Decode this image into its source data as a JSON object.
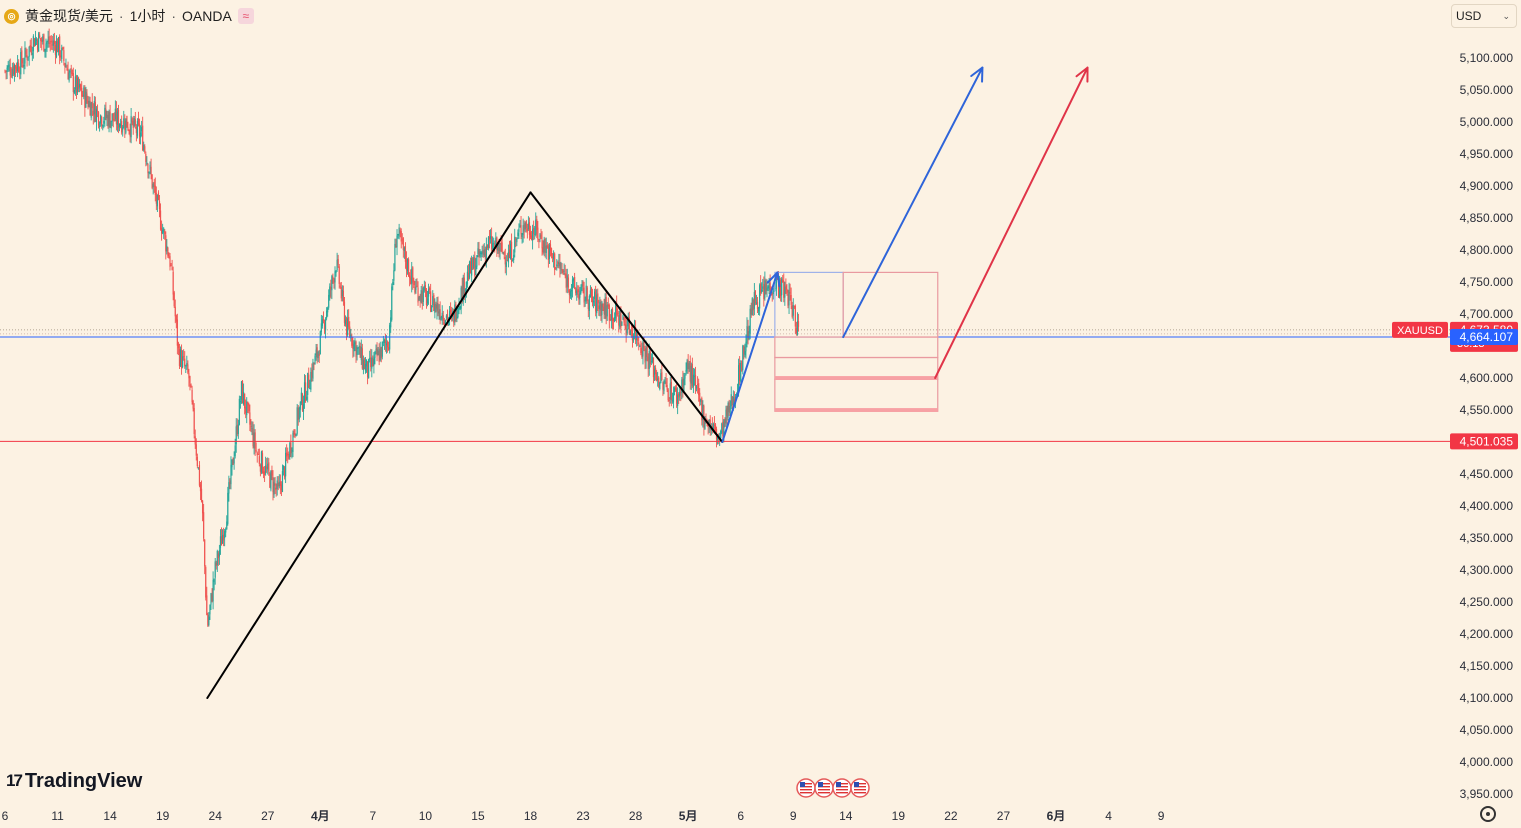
{
  "header": {
    "symbol_name": "黄金现货/美元",
    "timeframe": "1小时",
    "broker": "OANDA",
    "separator": "·",
    "logo_icon": "gold-coin-icon",
    "indicator_icon": "wave-icon"
  },
  "currency_select": {
    "value": "USD",
    "icon": "chevron-down-icon"
  },
  "brand": {
    "name": "TradingView",
    "logo_mark": "17",
    "logo_icon": "tradingview-logo-icon"
  },
  "settings_icon": "gear-icon",
  "colors": {
    "background": "#fcf2e3",
    "bull": "#26a69a",
    "bear": "#ef5350",
    "blue_line": "#2962ff",
    "red_line": "#f23645",
    "zone_fill": "#f7a1a4",
    "zone_stroke": "#e99aa0",
    "arrow_blue": "#2e64d9",
    "arrow_red": "#e03448"
  },
  "chart_data": {
    "type": "candlestick",
    "symbol": "XAUUSD",
    "timeframe": "1H",
    "y_unit": "USD",
    "ylim": [
      3925,
      5125
    ],
    "y_ticks": [
      "5,100.000",
      "5,050.000",
      "5,000.000",
      "4,950.000",
      "4,900.000",
      "4,850.000",
      "4,800.000",
      "4,750.000",
      "4,700.000",
      "4,650.000",
      "4,600.000",
      "4,550.000",
      "4,500.000",
      "4,450.000",
      "4,400.000",
      "4,350.000",
      "4,300.000",
      "4,250.000",
      "4,200.000",
      "4,150.000",
      "4,100.000",
      "4,050.000",
      "4,000.000",
      "3,950.000"
    ],
    "y_tick_values": [
      5100,
      5050,
      5000,
      4950,
      4900,
      4850,
      4800,
      4750,
      4700,
      4650,
      4600,
      4550,
      4500,
      4450,
      4400,
      4350,
      4300,
      4250,
      4200,
      4150,
      4100,
      4050,
      4000,
      3950
    ],
    "x_ticks": [
      "6",
      "11",
      "14",
      "19",
      "24",
      "27",
      "4月",
      "7",
      "10",
      "15",
      "18",
      "23",
      "28",
      "5月",
      "6",
      "9",
      "14",
      "19",
      "22",
      "27",
      "6月",
      "4",
      "9"
    ],
    "x_tick_index": [
      0,
      1,
      2,
      3,
      4,
      5,
      6,
      7,
      8,
      9,
      10,
      11,
      12,
      13,
      14,
      15,
      16,
      17,
      18,
      19,
      20,
      21,
      22
    ],
    "price_path": [
      [
        0,
        5080
      ],
      [
        0.35,
        5095
      ],
      [
        0.55,
        5130
      ],
      [
        1.0,
        5120
      ],
      [
        1.3,
        5060
      ],
      [
        1.8,
        5010
      ],
      [
        2.3,
        5000
      ],
      [
        2.6,
        4980
      ],
      [
        2.95,
        4850
      ],
      [
        3.15,
        4780
      ],
      [
        3.3,
        4640
      ],
      [
        3.5,
        4600
      ],
      [
        3.75,
        4400
      ],
      [
        3.85,
        4210
      ],
      [
        4.0,
        4300
      ],
      [
        4.2,
        4380
      ],
      [
        4.5,
        4580
      ],
      [
        4.8,
        4480
      ],
      [
        5.2,
        4420
      ],
      [
        5.6,
        4550
      ],
      [
        5.95,
        4640
      ],
      [
        6.3,
        4780
      ],
      [
        6.5,
        4680
      ],
      [
        6.9,
        4610
      ],
      [
        7.3,
        4660
      ],
      [
        7.45,
        4830
      ],
      [
        7.8,
        4740
      ],
      [
        8.1,
        4720
      ],
      [
        8.5,
        4690
      ],
      [
        8.8,
        4760
      ],
      [
        9.2,
        4810
      ],
      [
        9.6,
        4790
      ],
      [
        9.85,
        4840
      ],
      [
        10.1,
        4830
      ],
      [
        10.4,
        4790
      ],
      [
        10.8,
        4740
      ],
      [
        11.2,
        4720
      ],
      [
        11.6,
        4700
      ],
      [
        12.0,
        4670
      ],
      [
        12.5,
        4590
      ],
      [
        12.8,
        4570
      ],
      [
        13.0,
        4620
      ],
      [
        13.3,
        4540
      ],
      [
        13.6,
        4505
      ],
      [
        13.9,
        4580
      ],
      [
        14.25,
        4720
      ],
      [
        14.65,
        4750
      ],
      [
        14.9,
        4730
      ],
      [
        15.1,
        4676
      ]
    ],
    "last_price": "4,673.580",
    "countdown": "36:13",
    "symbol_label": "XAUUSD",
    "horizontal_lines": [
      {
        "price": 4664.107,
        "label": "4,664.107",
        "color": "#2962ff"
      },
      {
        "price": 4501.035,
        "label": "4,501.035",
        "color": "#f23645"
      }
    ],
    "trend_lines": [
      {
        "from": [
          3.85,
          4100
        ],
        "to": [
          10.0,
          4890
        ],
        "color": "#000000",
        "arrow": false
      },
      {
        "from": [
          10.0,
          4890
        ],
        "to": [
          13.65,
          4500
        ],
        "color": "#000000",
        "arrow": false
      },
      {
        "from": [
          13.65,
          4500
        ],
        "to": [
          14.7,
          4765
        ],
        "color": "#2e64d9",
        "arrow": true
      },
      {
        "from": [
          15.95,
          4664
        ],
        "to": [
          18.6,
          5085
        ],
        "color": "#2e64d9",
        "arrow": true
      },
      {
        "from": [
          17.7,
          4600
        ],
        "to": [
          20.6,
          5085
        ],
        "color": "#e03448",
        "arrow": true
      }
    ],
    "boxes": [
      {
        "x": [
          14.65,
          15.95
        ],
        "y": [
          4664,
          4765
        ],
        "stroke": "#9fb2e9",
        "fill": "none"
      },
      {
        "x": [
          15.95,
          17.75
        ],
        "y": [
          4664,
          4765
        ],
        "stroke": "#e99aa0",
        "fill": "none"
      },
      {
        "x": [
          14.65,
          17.75
        ],
        "y": [
          4632,
          4664
        ],
        "stroke": "#e99aa0",
        "fill": "none"
      },
      {
        "x": [
          14.65,
          17.75
        ],
        "y": [
          4598,
          4632
        ],
        "stroke": "#e99aa0",
        "fill": "none"
      },
      {
        "x": [
          14.65,
          17.75
        ],
        "y": [
          4548,
          4598
        ],
        "stroke": "#e99aa0",
        "fill": "none"
      }
    ],
    "zone_bars": [
      {
        "x": [
          14.65,
          17.75
        ],
        "y": [
          4597,
          4603
        ]
      },
      {
        "x": [
          14.65,
          17.75
        ],
        "y": [
          4547,
          4553
        ]
      }
    ],
    "event_markers": [
      "us-flag-icon",
      "us-flag-icon",
      "us-flag-icon",
      "us-flag-icon"
    ],
    "grid": false,
    "legend": "none"
  }
}
